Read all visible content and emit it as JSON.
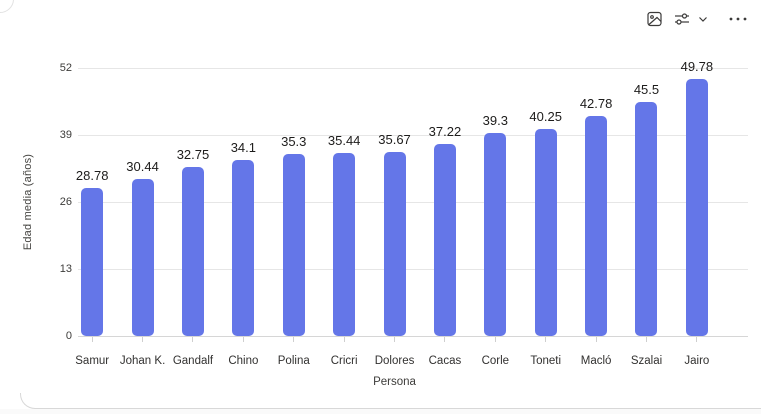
{
  "visual_header": {
    "icons": [
      {
        "name": "image-icon"
      },
      {
        "name": "filters-icon"
      },
      {
        "name": "chevron-down-icon"
      },
      {
        "name": "more-options-icon"
      }
    ]
  },
  "chart_data": {
    "type": "bar",
    "categories": [
      "Samur",
      "Johan K.",
      "Gandalf",
      "Chino",
      "Polina",
      "Cricri",
      "Dolores",
      "Cacas",
      "Corle",
      "Toneti",
      "Macló",
      "Szalai",
      "Jairo"
    ],
    "values": [
      28.78,
      30.44,
      32.75,
      34.1,
      35.3,
      35.44,
      35.67,
      37.22,
      39.3,
      40.25,
      42.78,
      45.5,
      49.78
    ],
    "data_labels": [
      "28.78",
      "30.44",
      "32.75",
      "34.1",
      "35.3",
      "35.44",
      "35.67",
      "37.22",
      "39.3",
      "40.25",
      "42.78",
      "45.5",
      "49.78"
    ],
    "xlabel": "Persona",
    "ylabel": "Edad media (años)",
    "ylim": [
      0,
      52
    ],
    "yticks": [
      0,
      13,
      26,
      39,
      52
    ],
    "grid": true,
    "legend": "none",
    "bar_color": "#6476e8"
  }
}
